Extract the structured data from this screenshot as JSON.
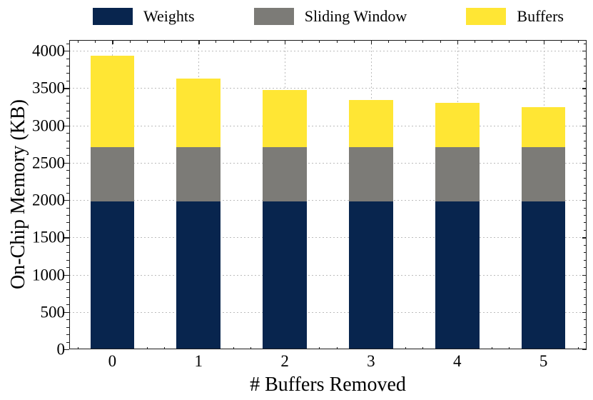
{
  "chart_data": {
    "type": "bar",
    "stacked": true,
    "title": "",
    "xlabel": "# Buffers Removed",
    "ylabel": "On-Chip Memory (KB)",
    "categories": [
      "0",
      "1",
      "2",
      "3",
      "4",
      "5"
    ],
    "series": [
      {
        "name": "Weights",
        "color": "#08254e",
        "values": [
          1985,
          1985,
          1985,
          1985,
          1985,
          1985
        ]
      },
      {
        "name": "Sliding Window",
        "color": "#7c7b77",
        "values": [
          725,
          725,
          725,
          725,
          725,
          725
        ]
      },
      {
        "name": "Buffers",
        "color": "#ffe634",
        "values": [
          1220,
          920,
          765,
          635,
          590,
          535
        ]
      }
    ],
    "stack_totals": [
      3930,
      3630,
      3475,
      3345,
      3300,
      3245
    ],
    "y_ticks": [
      0,
      500,
      1000,
      1500,
      2000,
      2500,
      3000,
      3500,
      4000
    ],
    "ylim": [
      0,
      4145
    ],
    "y_minor_step": 100,
    "x_minor_offsets": [
      -0.4,
      -0.2,
      0.2,
      0.4
    ],
    "grid": true,
    "legend_position": "top",
    "colors": {
      "grid": "#bcbcbc",
      "axis": "#1c1c1c",
      "text": "#000000",
      "background": "#ffffff"
    }
  }
}
